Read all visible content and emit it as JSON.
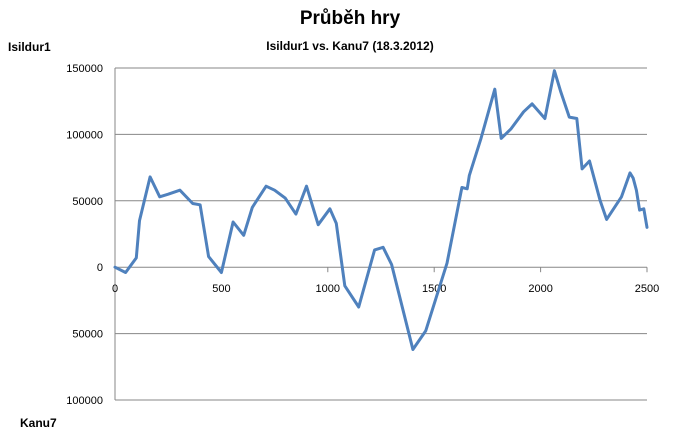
{
  "chart_data": {
    "type": "line",
    "title": "Průběh hry",
    "subtitle": "Isildur1 vs. Kanu7 (18.3.2012)",
    "player_top": "Isildur1",
    "player_bottom": "Kanu7",
    "xlim": [
      0,
      2500
    ],
    "ylim": [
      -100000,
      150000
    ],
    "grid": true,
    "x_ticks": [
      0,
      500,
      1000,
      1500,
      2000,
      2500
    ],
    "x_tick_labels": [
      "0",
      "500",
      "1000",
      "1500",
      "2000",
      "2500"
    ],
    "y_ticks": [
      150000,
      100000,
      50000,
      0,
      -50000,
      -100000
    ],
    "y_tick_labels": [
      "150000",
      "100000",
      "50000",
      "0",
      "50000",
      "100000"
    ],
    "line_color": "#4f81bd",
    "series": [
      {
        "x": [
          0,
          50,
          100,
          115,
          165,
          210,
          250,
          305,
          365,
          400,
          440,
          500,
          555,
          605,
          645,
          710,
          750,
          800,
          850,
          900,
          955,
          1010,
          1040,
          1080,
          1145,
          1220,
          1260,
          1300,
          1400,
          1460,
          1560,
          1630,
          1655,
          1665,
          1720,
          1785,
          1815,
          1860,
          1920,
          1960,
          2020,
          2065,
          2095,
          2135,
          2170,
          2195,
          2230,
          2280,
          2310,
          2380,
          2420,
          2435,
          2450,
          2465,
          2485,
          2500
        ],
        "y": [
          0,
          -4000,
          7000,
          35000,
          68000,
          53000,
          55000,
          58000,
          48000,
          47000,
          8000,
          -4000,
          34000,
          24000,
          45000,
          61000,
          58000,
          52000,
          40000,
          61000,
          32000,
          44000,
          33000,
          -14000,
          -30000,
          13000,
          15000,
          2000,
          -62000,
          -48000,
          3000,
          60000,
          59000,
          69000,
          97000,
          134000,
          97000,
          104000,
          117000,
          123000,
          112000,
          148000,
          132000,
          113000,
          112000,
          74000,
          80000,
          50000,
          36000,
          53000,
          71000,
          67000,
          58000,
          43000,
          44000,
          30000
        ]
      }
    ]
  }
}
